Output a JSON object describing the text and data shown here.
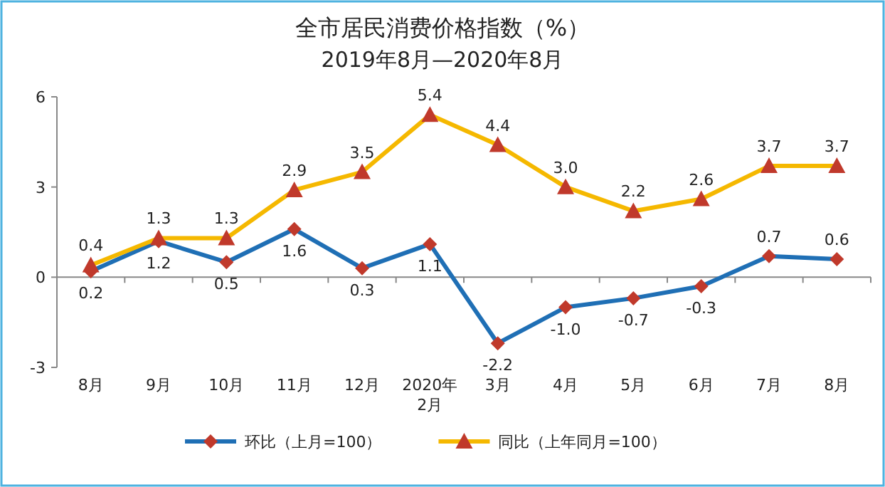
{
  "chart_data": {
    "type": "line",
    "title": "全市居民消费价格指数（%）",
    "subtitle": "2019年8月—2020年8月",
    "categories": [
      "8月",
      "9月",
      "10月",
      "11月",
      "12月",
      "2020年2月",
      "3月",
      "4月",
      "5月",
      "6月",
      "7月",
      "8月"
    ],
    "series": [
      {
        "name": "环比（上月=100）",
        "color": "#1f6fb5",
        "marker": "diamond",
        "values": [
          0.2,
          1.2,
          0.5,
          1.6,
          0.3,
          1.1,
          -2.2,
          -1.0,
          -0.7,
          -0.3,
          0.7,
          0.6
        ],
        "value_labels": [
          "0.2",
          "1.2",
          "0.5",
          "1.6",
          "0.3",
          "1.1",
          "-2.2",
          "-1.0",
          "-0.7",
          "-0.3",
          "0.7",
          "0.6"
        ]
      },
      {
        "name": "同比（上年同月=100）",
        "color": "#f5b800",
        "marker": "triangle",
        "values": [
          0.4,
          1.3,
          1.3,
          2.9,
          3.5,
          5.4,
          4.4,
          3.0,
          2.2,
          2.6,
          3.7,
          3.7
        ],
        "value_labels": [
          "0.4",
          "1.3",
          "1.3",
          "2.9",
          "3.5",
          "5.4",
          "4.4",
          "3.0",
          "2.2",
          "2.6",
          "3.7",
          "3.7"
        ]
      }
    ],
    "ylim": [
      -3,
      6
    ],
    "yticks": [
      -3,
      0,
      3,
      6
    ],
    "legend": "bottom"
  }
}
